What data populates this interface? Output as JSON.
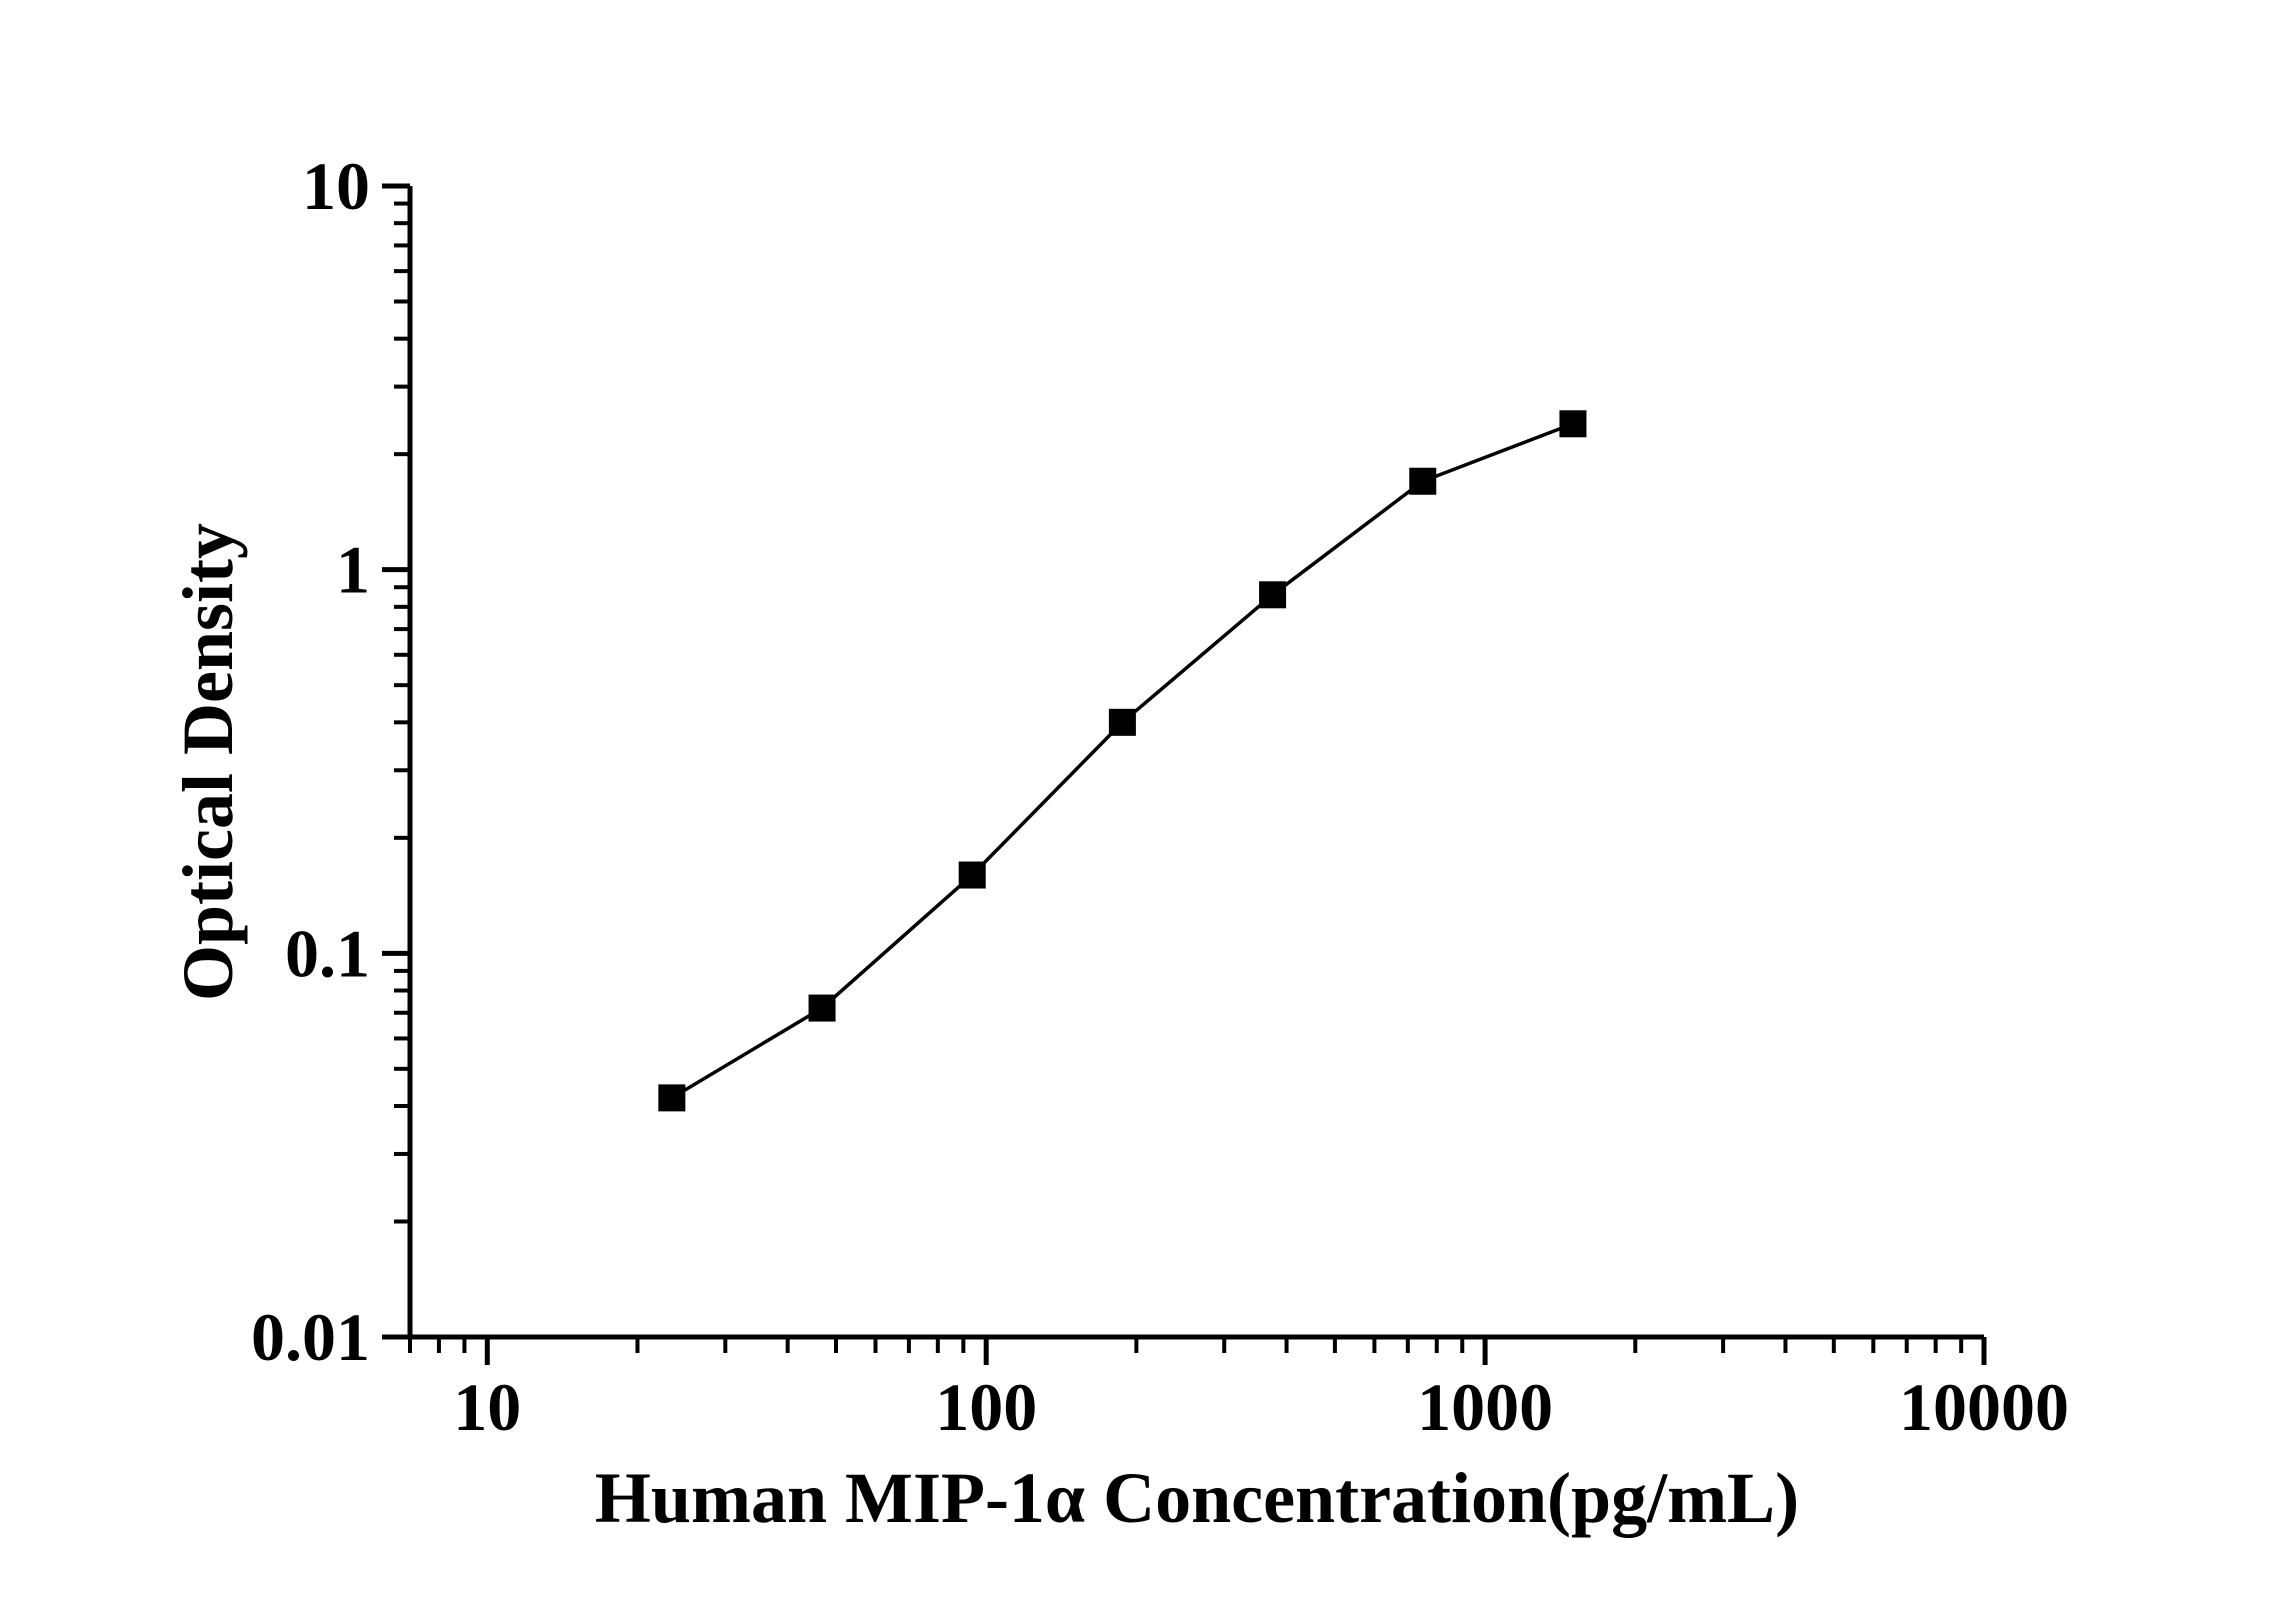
{
  "chart_data": {
    "type": "line",
    "title": "",
    "xlabel": "Human MIP-1α Concentration(pg/mL)",
    "ylabel": "Optical Density",
    "x_scale": "log10",
    "y_scale": "log10",
    "xlim": [
      7,
      10000
    ],
    "ylim": [
      0.01,
      10
    ],
    "grid": false,
    "legend": null,
    "marker": "filled-square",
    "line_color": "#000000",
    "marker_color": "#000000",
    "background_color": "#ffffff",
    "x": [
      23.44,
      46.88,
      93.75,
      187.5,
      375,
      750,
      1500
    ],
    "y": [
      0.042,
      0.072,
      0.16,
      0.4,
      0.86,
      1.7,
      2.4
    ],
    "x_major_ticks": {
      "values": [
        10,
        100,
        1000,
        10000
      ],
      "labels": [
        "10",
        "100",
        "1000",
        "10000"
      ]
    },
    "y_major_ticks": {
      "values": [
        10,
        1,
        0.1,
        0.01
      ],
      "labels": [
        "10",
        "1",
        "0.1",
        "0.01"
      ]
    }
  }
}
